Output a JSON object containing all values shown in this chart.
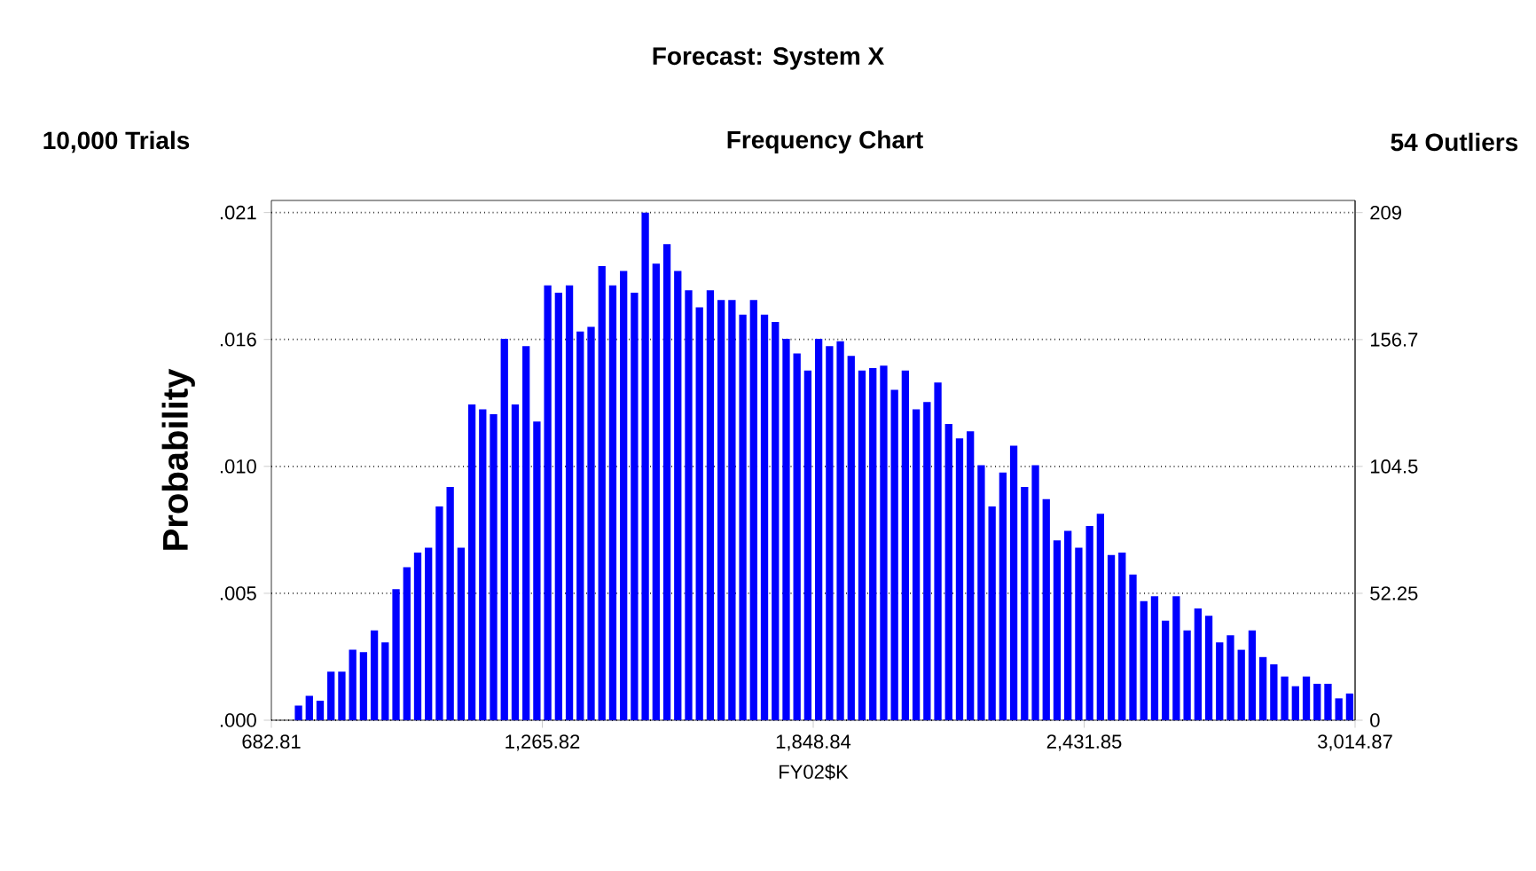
{
  "chart_data": {
    "type": "histogram",
    "title": "Forecast: System X",
    "subtitle": "Frequency Chart",
    "annotations": [
      "10,000 Trials",
      "54 Outliers"
    ],
    "xlabel": "FY02$K",
    "ylabel": "Probability",
    "bins": [
      682.81,
      706.1,
      729.5,
      752.8,
      776.1,
      799.4,
      822.7,
      846.1,
      869.4,
      892.7,
      916.0,
      939.3,
      962.7,
      986.0,
      1009.3,
      1032.6,
      1055.9,
      1079.3,
      1102.6,
      1125.9,
      1149.2,
      1172.5,
      1195.9,
      1219.2,
      1242.5,
      1265.8,
      1289.1,
      1312.5,
      1335.8,
      1359.1,
      1382.4,
      1405.7,
      1429.1,
      1452.4,
      1475.7,
      1499.0,
      1522.4,
      1545.7,
      1569.0,
      1592.3,
      1615.6,
      1639.0,
      1662.3,
      1685.6,
      1708.9,
      1732.2,
      1755.6,
      1778.9,
      1802.2,
      1825.5,
      1848.8,
      1872.2,
      1895.5,
      1918.8,
      1942.1,
      1965.4,
      1988.8,
      2012.1,
      2035.4,
      2058.7,
      2082.0,
      2105.4,
      2128.7,
      2152.0,
      2175.3,
      2198.6,
      2222.0,
      2245.3,
      2268.6,
      2291.9,
      2315.3,
      2338.6,
      2361.9,
      2385.2,
      2408.5,
      2431.9,
      2455.2,
      2478.5,
      2501.8,
      2525.1,
      2548.5,
      2571.8,
      2595.1,
      2618.4,
      2641.7,
      2665.1,
      2688.4,
      2711.7,
      2735.0,
      2758.3,
      2781.7,
      2805.0,
      2828.3,
      2851.6,
      2874.9,
      2898.3,
      2921.6,
      2944.9,
      2968.2,
      2991.5,
      3014.87
    ],
    "series": [
      {
        "color": "#0000ff",
        "axis": "y2",
        "values": [
          0,
          0,
          6,
          10,
          8,
          20,
          20,
          29,
          28,
          37,
          32,
          54,
          63,
          69,
          71,
          88,
          96,
          71,
          130,
          128,
          126,
          157,
          130,
          154,
          123,
          179,
          176,
          179,
          160,
          162,
          187,
          179,
          185,
          176,
          209,
          188,
          196,
          185,
          177,
          170,
          177,
          173,
          173,
          167,
          173,
          167,
          164,
          157,
          151,
          144,
          157,
          154,
          156,
          150,
          144,
          145,
          146,
          136,
          144,
          128,
          131,
          139,
          122,
          116,
          119,
          105,
          88,
          102,
          113,
          96,
          105,
          91,
          74,
          78,
          71,
          80,
          85,
          68,
          69,
          60,
          49,
          51,
          41,
          51,
          37,
          46,
          43,
          32,
          35,
          29,
          37,
          26,
          23,
          18,
          14,
          18,
          15,
          15,
          9,
          11
        ]
      }
    ],
    "xlim": [
      682.81,
      3014.87
    ],
    "xticks": [
      682.81,
      {
        "value": 1265.82,
        "label": "1,265.82"
      },
      {
        "value": 1848.84,
        "label": "1,848.84"
      },
      {
        "value": 2431.85,
        "label": "2,431.85"
      },
      {
        "value": 3014.87,
        "label": "3,014.87"
      }
    ],
    "ylim": [
      0,
      0.0215
    ],
    "yticks": [
      {
        "value": 0,
        "label": ".000"
      },
      {
        "value": 0.00525,
        "label": ".005"
      },
      {
        "value": 0.0105,
        "label": ".010"
      },
      {
        "value": 0.01575,
        "label": ".016"
      },
      {
        "value": 0.021,
        "label": ".021"
      }
    ],
    "y2lim": [
      0,
      214
    ],
    "y2ticks": [
      0,
      52.25,
      104.5,
      156.7,
      209
    ],
    "grid": "y"
  }
}
